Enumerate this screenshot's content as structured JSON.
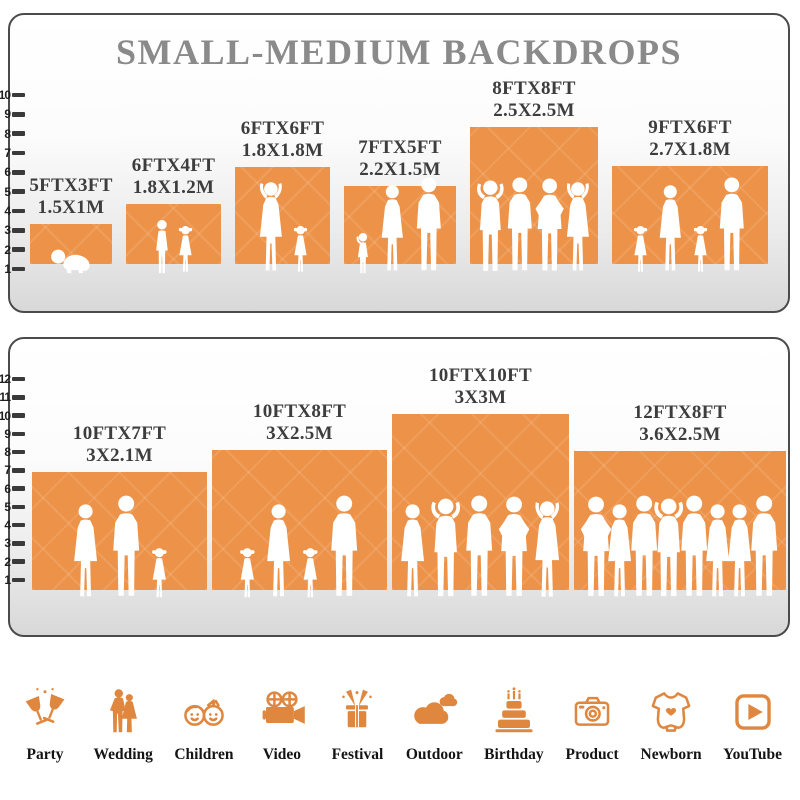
{
  "page_title": "SMALL-MEDIUM BACKDROPS",
  "colors": {
    "backdrop_orange": "#ED9349",
    "icon_orange": "#E0873F",
    "title_gray": "#8A8A8A",
    "label_dark": "#3D3D3D",
    "panel_border": "#4B4B4B",
    "silhouette_white": "#FFFFFF"
  },
  "chart_data": [
    {
      "type": "bar",
      "title": "SMALL-MEDIUM BACKDROPS",
      "categories": [
        "5FTX3FT",
        "6FTX4FT",
        "6FTX6FT",
        "7FTX5FT",
        "8FTX8FT",
        "9FTX6FT"
      ],
      "metric_labels": [
        "1.5X1M",
        "1.8X1.2M",
        "1.8X1.8M",
        "2.2X1.5M",
        "2.5X2.5M",
        "2.7X1.8M"
      ],
      "width_ft": [
        5,
        6,
        6,
        7,
        8,
        9
      ],
      "height_ft": [
        3,
        4,
        6,
        5,
        8,
        6
      ],
      "values": [
        3,
        4,
        6,
        5,
        8,
        6
      ],
      "ylim": [
        1,
        10
      ],
      "ruler_ticks": [
        10,
        9,
        8,
        7,
        6,
        5,
        4,
        3,
        2,
        1
      ],
      "legend_position": "none",
      "grid": false,
      "figures": [
        [
          "baby"
        ],
        [
          "boy",
          "girl"
        ],
        [
          "woman-up",
          "girl"
        ],
        [
          "toddler",
          "woman",
          "man"
        ],
        [
          "man-up",
          "man",
          "man-hips",
          "woman-up"
        ],
        [
          "girl",
          "woman",
          "girl",
          "man"
        ]
      ]
    },
    {
      "type": "bar",
      "title": "",
      "categories": [
        "10FTX7FT",
        "10FTX8FT",
        "10FTX10FT",
        "12FTX8FT"
      ],
      "metric_labels": [
        "3X2.1M",
        "3X2.5M",
        "3X3M",
        "3.6X2.5M"
      ],
      "width_ft": [
        10,
        10,
        10,
        12
      ],
      "height_ft": [
        7,
        8,
        10,
        8
      ],
      "values": [
        7,
        8,
        10,
        8
      ],
      "ylim": [
        1,
        12
      ],
      "ruler_ticks": [
        12,
        11,
        10,
        9,
        8,
        7,
        6,
        5,
        4,
        3,
        2,
        1
      ],
      "legend_position": "none",
      "grid": false,
      "figures": [
        [
          "woman",
          "man",
          "girl"
        ],
        [
          "girl",
          "woman",
          "girl",
          "man"
        ],
        [
          "woman",
          "man-up",
          "man",
          "man-hips",
          "woman-up"
        ],
        [
          "man-hips",
          "woman",
          "man",
          "man-up",
          "man",
          "woman",
          "woman",
          "man"
        ]
      ]
    }
  ],
  "categories_row": [
    {
      "label": "Party",
      "icon": "party-icon"
    },
    {
      "label": "Wedding",
      "icon": "wedding-icon"
    },
    {
      "label": "Children",
      "icon": "children-icon"
    },
    {
      "label": "Video",
      "icon": "video-icon"
    },
    {
      "label": "Festival",
      "icon": "festival-icon"
    },
    {
      "label": "Outdoor",
      "icon": "outdoor-icon"
    },
    {
      "label": "Birthday",
      "icon": "birthday-icon"
    },
    {
      "label": "Product",
      "icon": "product-icon"
    },
    {
      "label": "Newborn",
      "icon": "newborn-icon"
    },
    {
      "label": "YouTube",
      "icon": "youtube-icon"
    }
  ]
}
